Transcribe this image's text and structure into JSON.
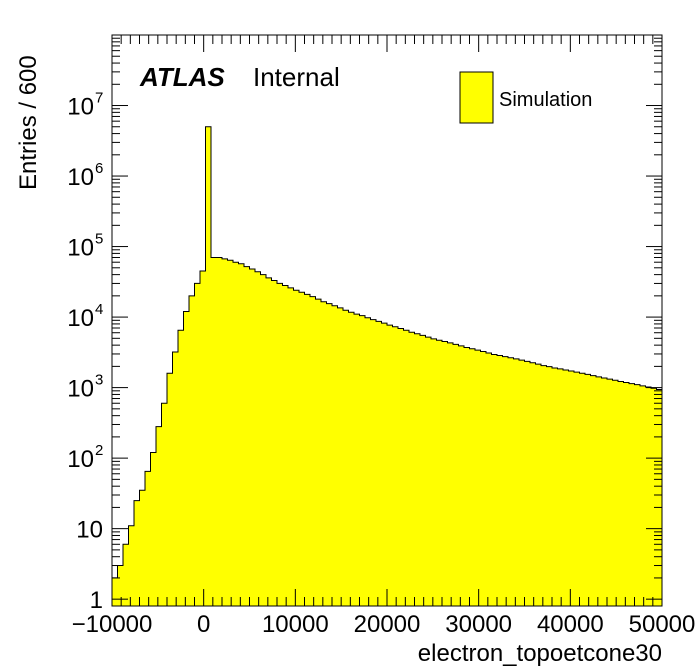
{
  "chart_data": {
    "type": "bar",
    "title": "",
    "xlabel": "electron_topoetcone30",
    "ylabel": "Entries / 600",
    "xlim": [
      -10000,
      50000
    ],
    "ylim": [
      0.8,
      100000000
    ],
    "y_scale": "log",
    "grid": false,
    "fill_color": "#ffff00",
    "line_color": "#000000",
    "legend": {
      "placement": "top-right",
      "entries": [
        {
          "label": "Simulation",
          "color": "#ffff00"
        }
      ]
    },
    "labels": {
      "experiment": "ATLAS",
      "status": "Internal"
    },
    "bin_width": 600,
    "bin_start": -10000,
    "x_tick_labels": [
      {
        "value": -10000,
        "label": "−10000"
      },
      {
        "value": 0,
        "label": "0"
      },
      {
        "value": 10000,
        "label": "10000"
      },
      {
        "value": 20000,
        "label": "20000"
      },
      {
        "value": 30000,
        "label": "30000"
      },
      {
        "value": 40000,
        "label": "40000"
      },
      {
        "value": 50000,
        "label": "50000"
      }
    ],
    "y_tick_labels": [
      {
        "value": 1,
        "base": "1",
        "exp": ""
      },
      {
        "value": 10,
        "base": "10",
        "exp": ""
      },
      {
        "value": 100,
        "base": "10",
        "exp": "2"
      },
      {
        "value": 1000,
        "base": "10",
        "exp": "3"
      },
      {
        "value": 10000,
        "base": "10",
        "exp": "4"
      },
      {
        "value": 100000,
        "base": "10",
        "exp": "5"
      },
      {
        "value": 1000000,
        "base": "10",
        "exp": "6"
      },
      {
        "value": 10000000,
        "base": "10",
        "exp": "7"
      }
    ],
    "values": [
      2,
      3,
      6,
      11,
      25,
      35,
      65,
      120,
      280,
      600,
      1600,
      3200,
      6500,
      12000,
      20000,
      30000,
      45000,
      5000000,
      70000,
      70000,
      67000,
      64000,
      60000,
      57000,
      52000,
      48000,
      44000,
      40000,
      36000,
      33000,
      30000,
      28000,
      26000,
      24000,
      22500,
      21000,
      19500,
      18000,
      16500,
      15500,
      14500,
      13500,
      12500,
      11700,
      11000,
      10500,
      9800,
      9200,
      8700,
      8200,
      7700,
      7300,
      6900,
      6500,
      6100,
      5800,
      5500,
      5200,
      4900,
      4700,
      4500,
      4300,
      4100,
      3900,
      3700,
      3550,
      3400,
      3250,
      3100,
      2950,
      2850,
      2750,
      2650,
      2550,
      2450,
      2350,
      2250,
      2150,
      2050,
      1980,
      1900,
      1840,
      1780,
      1720,
      1660,
      1600,
      1540,
      1480,
      1420,
      1370,
      1320,
      1270,
      1220,
      1180,
      1140,
      1100,
      1060,
      1020,
      980,
      940
    ]
  }
}
